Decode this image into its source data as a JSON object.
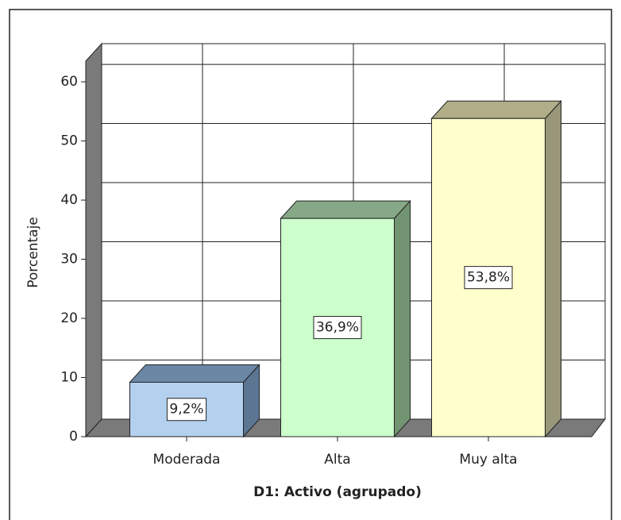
{
  "chart_data": {
    "type": "bar3d",
    "categories": [
      "Moderada",
      "Alta",
      "Muy alta"
    ],
    "values": [
      9.2,
      36.9,
      53.8
    ],
    "value_labels": [
      "9,2%",
      "36,9%",
      "53,8%"
    ],
    "colors": [
      [
        "#b3d1ef",
        "#6b87a6",
        "#5b7593"
      ],
      [
        "#ccffcc",
        "#86a886",
        "#729472"
      ],
      [
        "#ffffcc",
        "#b0ad88",
        "#99967a"
      ]
    ],
    "y_label": "Porcentaje",
    "x_label": "D1: Activo (agrupado)",
    "ylim": [
      0,
      63.5
    ],
    "yticks": [
      0,
      10,
      20,
      30,
      40,
      50,
      60
    ],
    "grid": true
  }
}
